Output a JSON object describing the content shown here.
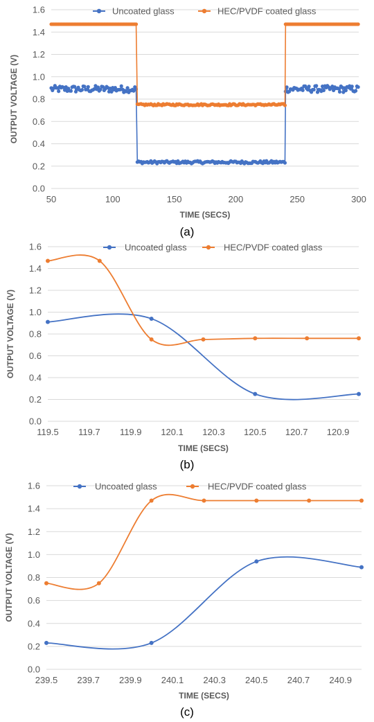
{
  "chart_data": [
    {
      "type": "scatter",
      "panel": "a",
      "caption": "(a)",
      "xlabel": "TIME (SECS)",
      "ylabel": "OUTPUT VOLTAGE (V)",
      "xlim": [
        50,
        300
      ],
      "ylim": [
        0.0,
        1.6
      ],
      "xticks": [
        "50",
        "100",
        "150",
        "200",
        "250",
        "300"
      ],
      "yticks": [
        "0.0",
        "0.2",
        "0.4",
        "0.6",
        "0.8",
        "1.0",
        "1.2",
        "1.4",
        "1.6"
      ],
      "legend_position": "top",
      "grid": true,
      "series": [
        {
          "name": "Uncoated glass",
          "color": "#4472c4",
          "segments": [
            {
              "from": 50,
              "to": 119.5,
              "level": 0.89,
              "noise": 0.03
            },
            {
              "from": 120.0,
              "to": 240.0,
              "level": 0.235,
              "noise": 0.012
            },
            {
              "from": 240.5,
              "to": 300,
              "level": 0.89,
              "noise": 0.03
            }
          ]
        },
        {
          "name": "HEC/PVDF coated glass",
          "color": "#ed7d31",
          "segments": [
            {
              "from": 50,
              "to": 119.5,
              "level": 1.47,
              "noise": 0.0
            },
            {
              "from": 120.0,
              "to": 240.0,
              "level": 0.75,
              "noise": 0.008
            },
            {
              "from": 240.5,
              "to": 300,
              "level": 1.47,
              "noise": 0.0
            }
          ]
        }
      ]
    },
    {
      "type": "line",
      "panel": "b",
      "caption": "(b)",
      "xlabel": "TIME (SECS)",
      "ylabel": "OUTPUT VOLTAGE (V)",
      "xlim": [
        119.5,
        121.0
      ],
      "ylim": [
        0.0,
        1.6
      ],
      "xticks": [
        "119.5",
        "119.7",
        "119.9",
        "120.1",
        "120.3",
        "120.5",
        "120.7",
        "120.9"
      ],
      "yticks": [
        "0.0",
        "0.2",
        "0.4",
        "0.6",
        "0.8",
        "1.0",
        "1.2",
        "1.4",
        "1.6"
      ],
      "legend_position": "top",
      "grid": true,
      "smooth": true,
      "series": [
        {
          "name": "Uncoated glass",
          "color": "#4472c4",
          "x": [
            119.5,
            120.0,
            120.5,
            121.0
          ],
          "y": [
            0.91,
            0.94,
            0.25,
            0.25
          ]
        },
        {
          "name": "HEC/PVDF coated glass",
          "color": "#ed7d31",
          "x": [
            119.5,
            119.75,
            120.0,
            120.25,
            120.5,
            120.75,
            121.0
          ],
          "y": [
            1.47,
            1.47,
            0.75,
            0.75,
            0.76,
            0.76,
            0.76
          ]
        }
      ]
    },
    {
      "type": "line",
      "panel": "c",
      "caption": "(c)",
      "xlabel": "TIME (SECS)",
      "ylabel": "OUTPUT VOLTAGE (V)",
      "xlim": [
        239.5,
        241.0
      ],
      "ylim": [
        0.0,
        1.6
      ],
      "xticks": [
        "239.5",
        "239.7",
        "239.9",
        "240.1",
        "240.3",
        "240.5",
        "240.7",
        "240.9"
      ],
      "yticks": [
        "0.0",
        "0.2",
        "0.4",
        "0.6",
        "0.8",
        "1.0",
        "1.2",
        "1.4",
        "1.6"
      ],
      "legend_position": "top",
      "grid": true,
      "smooth": true,
      "series": [
        {
          "name": "Uncoated glass",
          "color": "#4472c4",
          "x": [
            239.5,
            240.0,
            240.5,
            241.0
          ],
          "y": [
            0.23,
            0.23,
            0.94,
            0.89
          ]
        },
        {
          "name": "HEC/PVDF coated glass",
          "color": "#ed7d31",
          "x": [
            239.5,
            239.75,
            240.0,
            240.25,
            240.5,
            240.75,
            241.0
          ],
          "y": [
            0.75,
            0.75,
            1.47,
            1.47,
            1.47,
            1.47,
            1.47
          ]
        }
      ]
    }
  ]
}
